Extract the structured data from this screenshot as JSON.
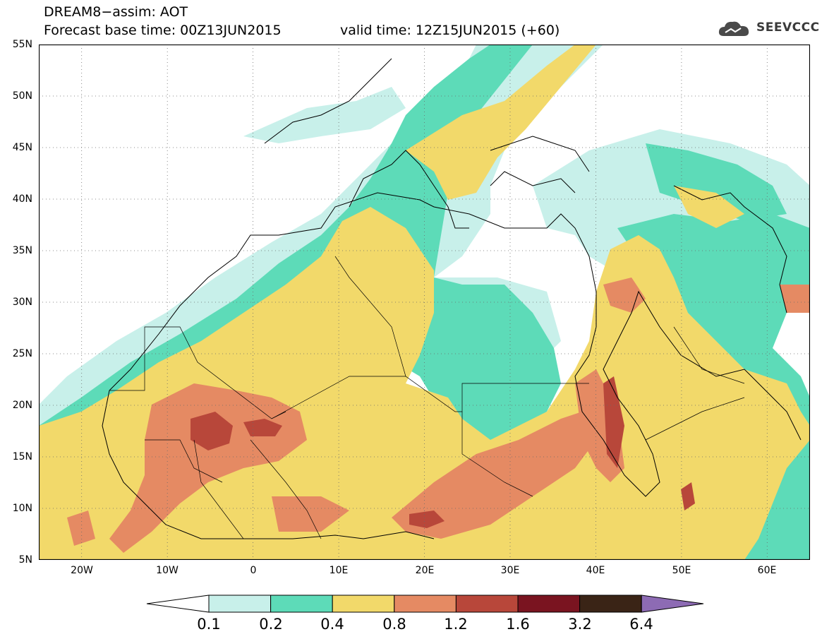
{
  "title": {
    "line1": "DREAM8−assim: AOT",
    "line2": "Forecast base time: 00Z13JUN2015",
    "valid": "valid time: 12Z15JUN2015 (+60)"
  },
  "logo": {
    "text": "SEEVCCC",
    "icon": "cloud-logo-icon"
  },
  "map": {
    "variable": "AOT",
    "lon_range": [
      -25,
      65
    ],
    "lat_range": [
      5,
      55
    ],
    "lat_labels": [
      "55N",
      "50N",
      "45N",
      "40N",
      "35N",
      "30N",
      "25N",
      "20N",
      "15N",
      "10N",
      "5N"
    ],
    "lon_labels": [
      "20W",
      "10W",
      "0",
      "10E",
      "20E",
      "30E",
      "40E",
      "50E",
      "60E"
    ],
    "grid": true,
    "colors": {
      "c01": "#c8f0ea",
      "c02": "#5ddbb8",
      "c04": "#f2d96a",
      "c08": "#e58a63",
      "c12": "#b8473a",
      "c16": "#7a1420",
      "c32": "#3a2416",
      "c64": "#8d6bb4"
    }
  },
  "colorbar": {
    "labels": [
      "0.1",
      "0.2",
      "0.4",
      "0.8",
      "1.2",
      "1.6",
      "3.2",
      "6.4"
    ],
    "colors": [
      "#c8f0ea",
      "#5ddbb8",
      "#f2d96a",
      "#e58a63",
      "#b8473a",
      "#7a1420",
      "#3a2416"
    ],
    "under_color": "#ffffff",
    "over_color": "#8d6bb4"
  }
}
